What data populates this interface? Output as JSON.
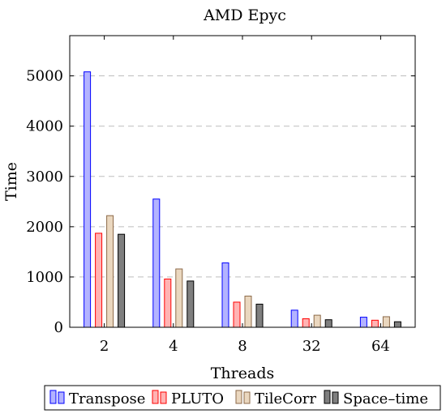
{
  "chart_data": {
    "type": "bar",
    "title": "AMD Epyc",
    "xlabel": "Threads",
    "ylabel": "Time",
    "categories": [
      "2",
      "4",
      "8",
      "32",
      "64"
    ],
    "ylim": [
      0,
      5800
    ],
    "yticks": [
      0,
      1000,
      2000,
      3000,
      4000,
      5000
    ],
    "yticklabels": [
      "0",
      "1000",
      "2000",
      "3000",
      "4000",
      "5000"
    ],
    "grid": "horizontal-dashed",
    "legend_position": "bottom-center",
    "series": [
      {
        "name": "Transpose",
        "fill": "#b3b3ff",
        "stroke": "#0000ff",
        "values": [
          5080,
          2550,
          1280,
          340,
          200
        ]
      },
      {
        "name": "PLUTO",
        "fill": "#ffb3b3",
        "stroke": "#ff0000",
        "values": [
          1870,
          960,
          500,
          170,
          140
        ]
      },
      {
        "name": "TileCorr",
        "fill": "#ead7bf",
        "stroke": "#8c6a48",
        "values": [
          2220,
          1160,
          620,
          240,
          210
        ]
      },
      {
        "name": "Space–time",
        "fill": "#7f7f7f",
        "stroke": "#000000",
        "values": [
          1850,
          920,
          460,
          150,
          110
        ]
      }
    ]
  }
}
